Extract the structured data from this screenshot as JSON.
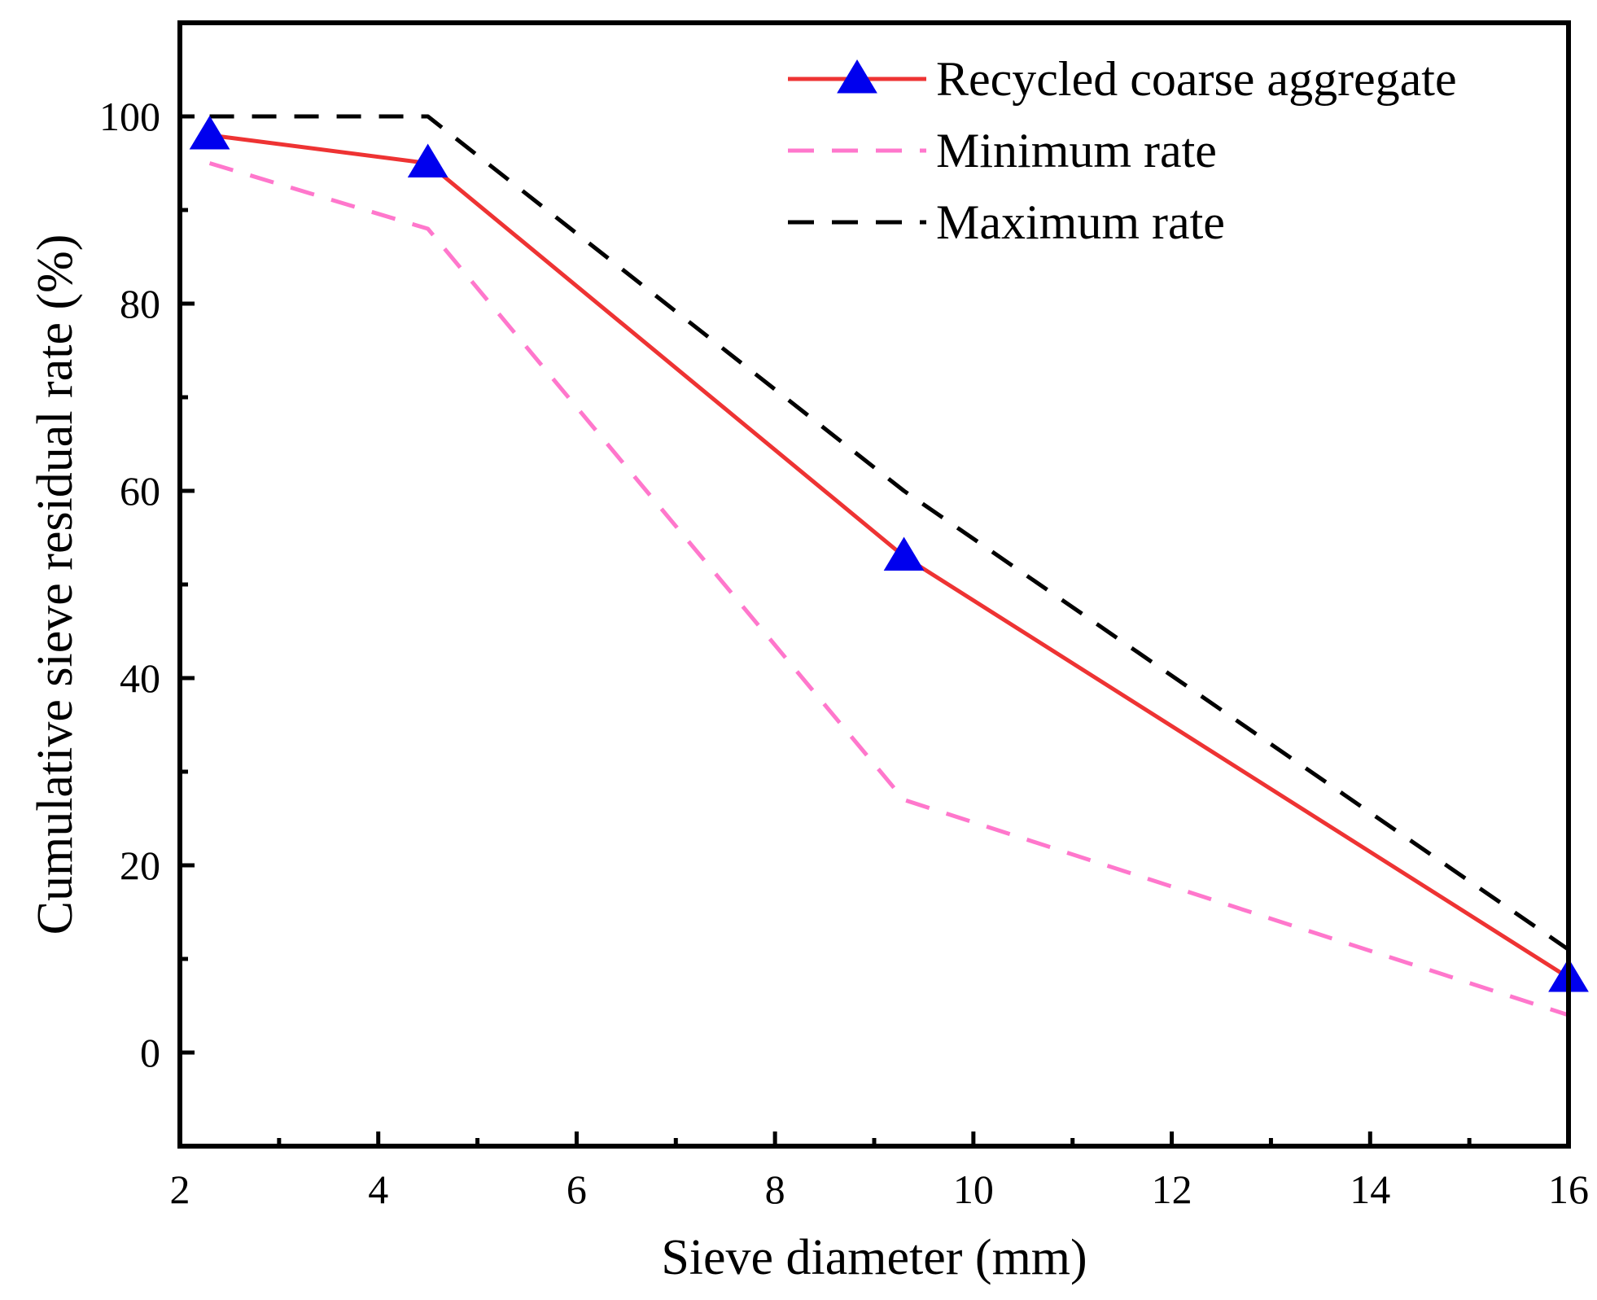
{
  "chart_data": {
    "type": "line",
    "title": "",
    "xlabel": "Sieve diameter (mm)",
    "ylabel": "Cumulative sieve residual rate (%)",
    "xlim": [
      2,
      16
    ],
    "ylim": [
      -10,
      110
    ],
    "x_ticks": [
      2,
      4,
      6,
      8,
      10,
      12,
      14,
      16
    ],
    "y_ticks": [
      0,
      20,
      40,
      60,
      80,
      100
    ],
    "grid": false,
    "legend_position": "top-right",
    "series": [
      {
        "name": "Recycled coarse aggregate",
        "style": "solid",
        "marker": "triangle",
        "color": "#ee3333",
        "marker_color": "#0000ee",
        "x": [
          2.3,
          4.5,
          9.3,
          16
        ],
        "y": [
          98,
          95,
          53,
          8
        ]
      },
      {
        "name": "Minimum rate",
        "style": "dashed",
        "color": "#ff77cc",
        "x": [
          2.3,
          4.5,
          9.3,
          16
        ],
        "y": [
          95,
          88,
          27,
          4
        ]
      },
      {
        "name": "Maximum rate",
        "style": "dashed",
        "color": "#000000",
        "x": [
          2.3,
          4.5,
          9.3,
          16
        ],
        "y": [
          100,
          100,
          60,
          11
        ]
      }
    ]
  }
}
